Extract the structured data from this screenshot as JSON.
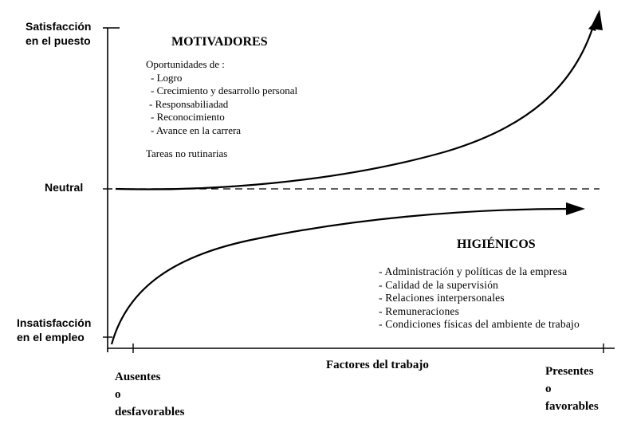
{
  "y_axis": {
    "top_label": [
      "Satisfacción",
      "en el puesto"
    ],
    "middle_label": "Neutral",
    "bottom_label": [
      "Insatisfacción",
      "en el empleo"
    ]
  },
  "x_axis": {
    "center_label": "Factores del trabajo",
    "left_label": [
      "Ausentes",
      "o",
      "desfavorables"
    ],
    "right_label": [
      "Presentes",
      "o",
      "favorables"
    ]
  },
  "motivadores": {
    "title": "MOTIVADORES",
    "intro": "Oportunidades de :",
    "items": [
      "- Logro",
      "- Crecimiento y desarrollo personal",
      "-  Responsabiliadad",
      "- Reconocimiento",
      "- Avance en la carrera"
    ],
    "extra": "Tareas no rutinarias"
  },
  "higienicos": {
    "title": "HIGIÉNICOS",
    "items": [
      "- Administración y políticas de la empresa",
      "- Calidad de la supervisión",
      "- Relaciones  interpersonales",
      "- Remuneraciones",
      "- Condiciones físicas del ambiente de trabajo"
    ]
  },
  "colors": {
    "ink": "#000000",
    "background": "#ffffff"
  }
}
